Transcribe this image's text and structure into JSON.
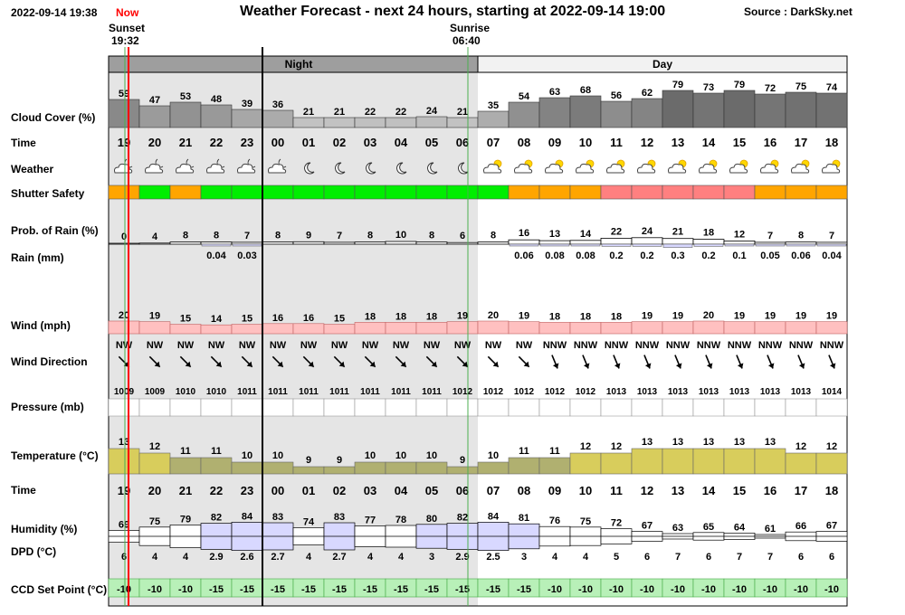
{
  "header": {
    "datetime": "2022-09-14 19:38",
    "now_label": "Now",
    "title": "Weather Forecast - next 24 hours, starting at 2022-09-14 19:00",
    "source": "Source : DarkSky.net",
    "sunset_label": "Sunset",
    "sunset_time": "19:32",
    "sunrise_label": "Sunrise",
    "sunrise_time": "06:40",
    "night_label": "Night",
    "day_label": "Day"
  },
  "row_labels": {
    "cloud": "Cloud Cover (%)",
    "time": "Time",
    "weather": "Weather",
    "shutter": "Shutter Safety",
    "prob": "Prob. of Rain (%)",
    "rain": "Rain (mm)",
    "wind": "Wind (mph)",
    "dir": "Wind Direction",
    "pressure": "Pressure (mb)",
    "temp": "Temperature (°C)",
    "time2": "Time",
    "humidity": "Humidity (%)",
    "dpd": "DPD (°C)",
    "ccd": "CCD Set Point (°C)"
  },
  "colors": {
    "night_bg": "#e5e5e5",
    "night_band": "#9e9e9e",
    "day_band": "#f2f2f2",
    "now_line": "#ff0000",
    "sunrise_line": "#4caf50",
    "shutter_safe": "#00ee00",
    "shutter_caution": "#ffa500",
    "shutter_unsafe": "#ff8080",
    "wind_fill": "#ffc0c0",
    "temp_warm": "#d8cd5c",
    "temp_cool": "#b0b070",
    "ccd_fill": "#b8f0b8",
    "humidity_fill": "#d8d8ff"
  },
  "chart_data": {
    "type": "table",
    "hours": [
      "19",
      "20",
      "21",
      "22",
      "23",
      "00",
      "01",
      "02",
      "03",
      "04",
      "05",
      "06",
      "07",
      "08",
      "09",
      "10",
      "11",
      "12",
      "13",
      "14",
      "15",
      "16",
      "17",
      "18"
    ],
    "cloud_cover": [
      59,
      47,
      53,
      48,
      39,
      36,
      21,
      21,
      22,
      22,
      24,
      21,
      35,
      54,
      63,
      68,
      56,
      62,
      79,
      73,
      79,
      72,
      75,
      74
    ],
    "weather_icons": [
      "night-partly-cloudy-icon",
      "night-partly-cloudy-icon",
      "night-partly-cloudy-icon",
      "night-partly-cloudy-icon",
      "night-partly-cloudy-icon",
      "night-partly-cloudy-icon",
      "moon-icon",
      "moon-icon",
      "moon-icon",
      "moon-icon",
      "moon-icon",
      "moon-icon",
      "partly-cloudy-day-icon",
      "partly-cloudy-day-icon",
      "partly-cloudy-day-icon",
      "partly-cloudy-day-icon",
      "partly-cloudy-day-icon",
      "partly-cloudy-day-icon",
      "partly-cloudy-day-icon",
      "partly-cloudy-day-icon",
      "partly-cloudy-day-icon",
      "partly-cloudy-day-icon",
      "partly-cloudy-day-icon",
      "partly-cloudy-day-icon"
    ],
    "shutter_safety": [
      "caution",
      "safe",
      "caution",
      "safe",
      "safe",
      "safe",
      "safe",
      "safe",
      "safe",
      "safe",
      "safe",
      "safe",
      "safe",
      "caution",
      "caution",
      "caution",
      "unsafe",
      "unsafe",
      "unsafe",
      "unsafe",
      "unsafe",
      "caution",
      "caution",
      "caution"
    ],
    "prob_rain": [
      0,
      4,
      8,
      8,
      7,
      8,
      9,
      7,
      8,
      10,
      8,
      6,
      8,
      16,
      13,
      14,
      22,
      24,
      21,
      18,
      12,
      7,
      8,
      7
    ],
    "rain_mm": [
      "",
      "",
      "",
      "0.04",
      "0.03",
      "",
      "",
      "",
      "",
      "",
      "",
      "",
      "",
      "0.06",
      "0.08",
      "0.08",
      "0.2",
      "0.2",
      "0.3",
      "0.2",
      "0.1",
      "0.05",
      "0.06",
      "0.04"
    ],
    "wind_mph": [
      20,
      19,
      15,
      14,
      15,
      16,
      16,
      15,
      18,
      18,
      18,
      19,
      20,
      19,
      18,
      18,
      18,
      19,
      19,
      20,
      19,
      19,
      19,
      19
    ],
    "wind_direction": [
      "NW",
      "NW",
      "NW",
      "NW",
      "NW",
      "NW",
      "NW",
      "NW",
      "NW",
      "NW",
      "NW",
      "NW",
      "NW",
      "NW",
      "NNW",
      "NNW",
      "NNW",
      "NNW",
      "NNW",
      "NNW",
      "NNW",
      "NNW",
      "NNW",
      "NNW"
    ],
    "pressure_mb": [
      1009,
      1009,
      1010,
      1010,
      1011,
      1011,
      1011,
      1011,
      1011,
      1011,
      1011,
      1012,
      1012,
      1012,
      1012,
      1012,
      1013,
      1013,
      1013,
      1013,
      1013,
      1013,
      1013,
      1014
    ],
    "temperature_c": [
      13,
      12,
      11,
      11,
      10,
      10,
      9,
      9,
      10,
      10,
      10,
      9,
      10,
      11,
      11,
      12,
      12,
      13,
      13,
      13,
      13,
      13,
      12,
      12
    ],
    "humidity_pct": [
      69,
      75,
      79,
      82,
      84,
      83,
      74,
      83,
      77,
      78,
      80,
      82,
      84,
      81,
      76,
      75,
      72,
      67,
      63,
      65,
      64,
      61,
      66,
      67
    ],
    "dpd_c": [
      "6",
      "4",
      "4",
      "2.9",
      "2.6",
      "2.7",
      "4",
      "2.7",
      "4",
      "4",
      "3",
      "2.9",
      "2.5",
      "3",
      "4",
      "4",
      "5",
      "6",
      "7",
      "6",
      "7",
      "7",
      "6",
      "6"
    ],
    "ccd_set_point": [
      -10,
      -10,
      -10,
      -15,
      -15,
      -15,
      -15,
      -15,
      -15,
      -15,
      -15,
      -15,
      -15,
      -15,
      -10,
      -10,
      -10,
      -10,
      -10,
      -10,
      -10,
      -10,
      -10,
      -10
    ]
  }
}
